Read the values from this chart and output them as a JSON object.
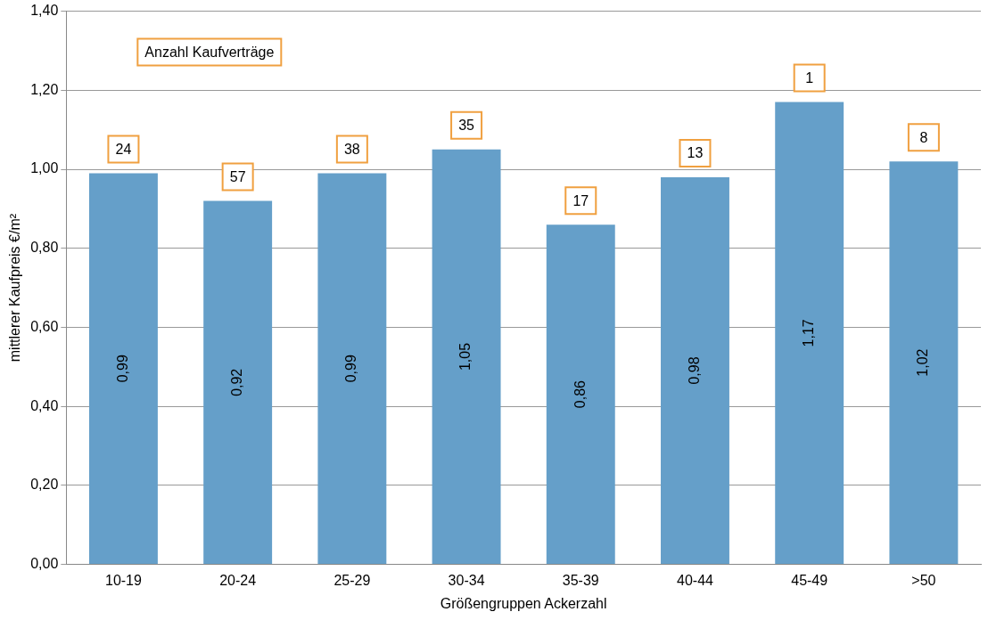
{
  "chart_data": {
    "type": "bar",
    "xlabel": "Größengruppen Ackerzahl",
    "ylabel": "mittlerer Kaufpreis €/m²",
    "categories": [
      "10-19",
      "20-24",
      "25-29",
      "30-34",
      "35-39",
      "40-44",
      "45-49",
      ">50"
    ],
    "values": [
      0.99,
      0.92,
      0.99,
      1.05,
      0.86,
      0.98,
      1.17,
      1.02
    ],
    "value_labels": [
      "0,99",
      "0,92",
      "0,99",
      "1,05",
      "0,86",
      "0,98",
      "1,17",
      "1,02"
    ],
    "color": "#659fc9",
    "ylim": [
      0,
      1.4
    ],
    "yticks": [
      {
        "value": 0,
        "label": "0,00"
      },
      {
        "value": 0.2,
        "label": "0,20"
      },
      {
        "value": 0.4,
        "label": "0,40"
      },
      {
        "value": 0.6,
        "label": "0,60"
      },
      {
        "value": 0.8,
        "label": "0,80"
      },
      {
        "value": 1.0,
        "label": "1,00"
      },
      {
        "value": 1.2,
        "label": "1,20"
      },
      {
        "value": 1.4,
        "label": "1,40"
      }
    ],
    "grid": "y",
    "legend": false,
    "annotations": [
      "Anzahl Kaufverträge",
      {
        "text": "24",
        "x": "10-19",
        "y": 0.99
      },
      {
        "text": "57",
        "x": "20-24",
        "y": 0.92
      },
      {
        "text": "38",
        "x": "25-29",
        "y": 0.99
      },
      {
        "text": "35",
        "x": "30-34",
        "y": 1.05
      },
      {
        "text": "17",
        "x": "35-39",
        "y": 0.86
      },
      {
        "text": "13",
        "x": "40-44",
        "y": 0.98
      },
      {
        "text": "1",
        "x": "45-49",
        "y": 1.17
      },
      {
        "text": "8",
        "x": ">50",
        "y": 1.02
      }
    ]
  }
}
